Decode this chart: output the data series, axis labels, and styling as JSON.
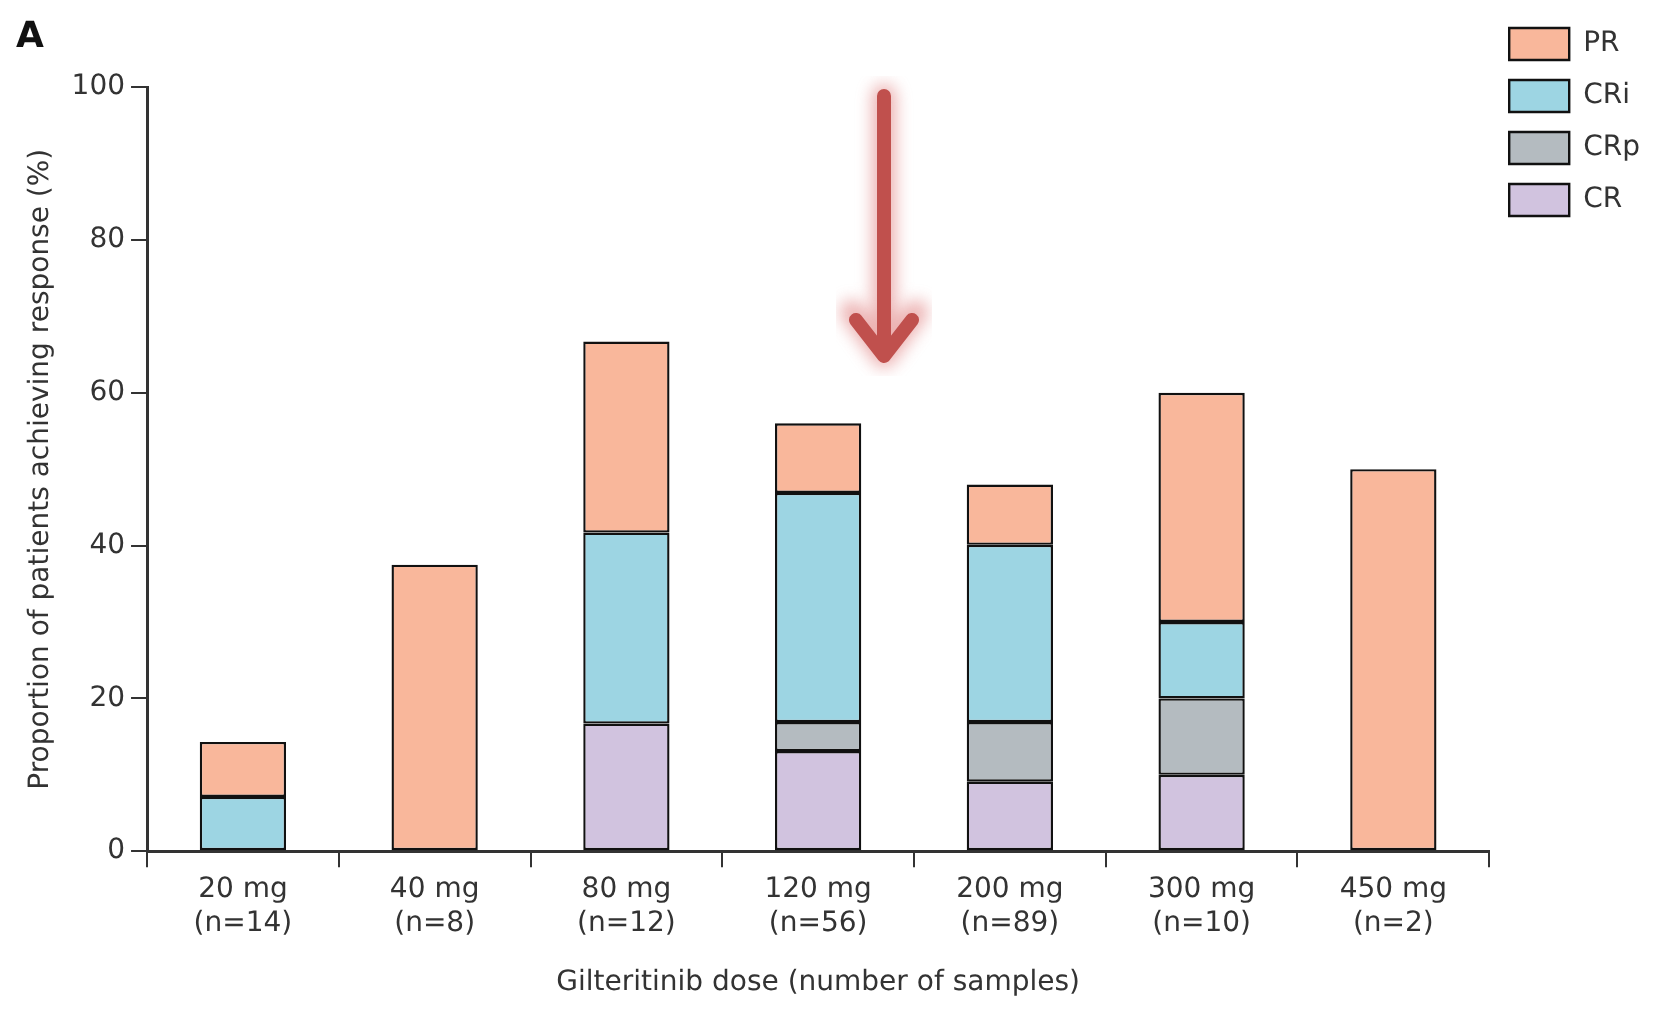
{
  "chart_data": {
    "type": "bar",
    "title": "A",
    "xlabel": "Gilteritinib dose (number of samples)",
    "ylabel": "Proportion of patients achieving response (%)",
    "categories": [
      "20 mg\n(n=14)",
      "40 mg\n(n=8)",
      "80 mg\n(n=12)",
      "120 mg\n(n=56)",
      "200 mg\n(n=89)",
      "300 mg\n(n=10)",
      "450 mg\n(n=2)"
    ],
    "stacked": true,
    "ylim": [
      0,
      100
    ],
    "yticks": [
      0,
      20,
      40,
      60,
      80,
      100
    ],
    "grid": false,
    "legend": "top right",
    "series": [
      {
        "name": "CR",
        "color": "#d1c3df",
        "values": [
          0,
          0,
          16.7,
          13.1,
          9.1,
          10,
          0
        ]
      },
      {
        "name": "CRp",
        "color": "#b4bbc0",
        "values": [
          0,
          0,
          0,
          3.8,
          7.8,
          10,
          0
        ]
      },
      {
        "name": "CRi",
        "color": "#9dd5e3",
        "values": [
          7.1,
          0,
          25,
          30,
          23.2,
          10,
          0
        ]
      },
      {
        "name": "PR",
        "color": "#f9b79b",
        "values": [
          7.2,
          37.5,
          25,
          9.1,
          7.9,
          30,
          50
        ]
      }
    ]
  }
}
